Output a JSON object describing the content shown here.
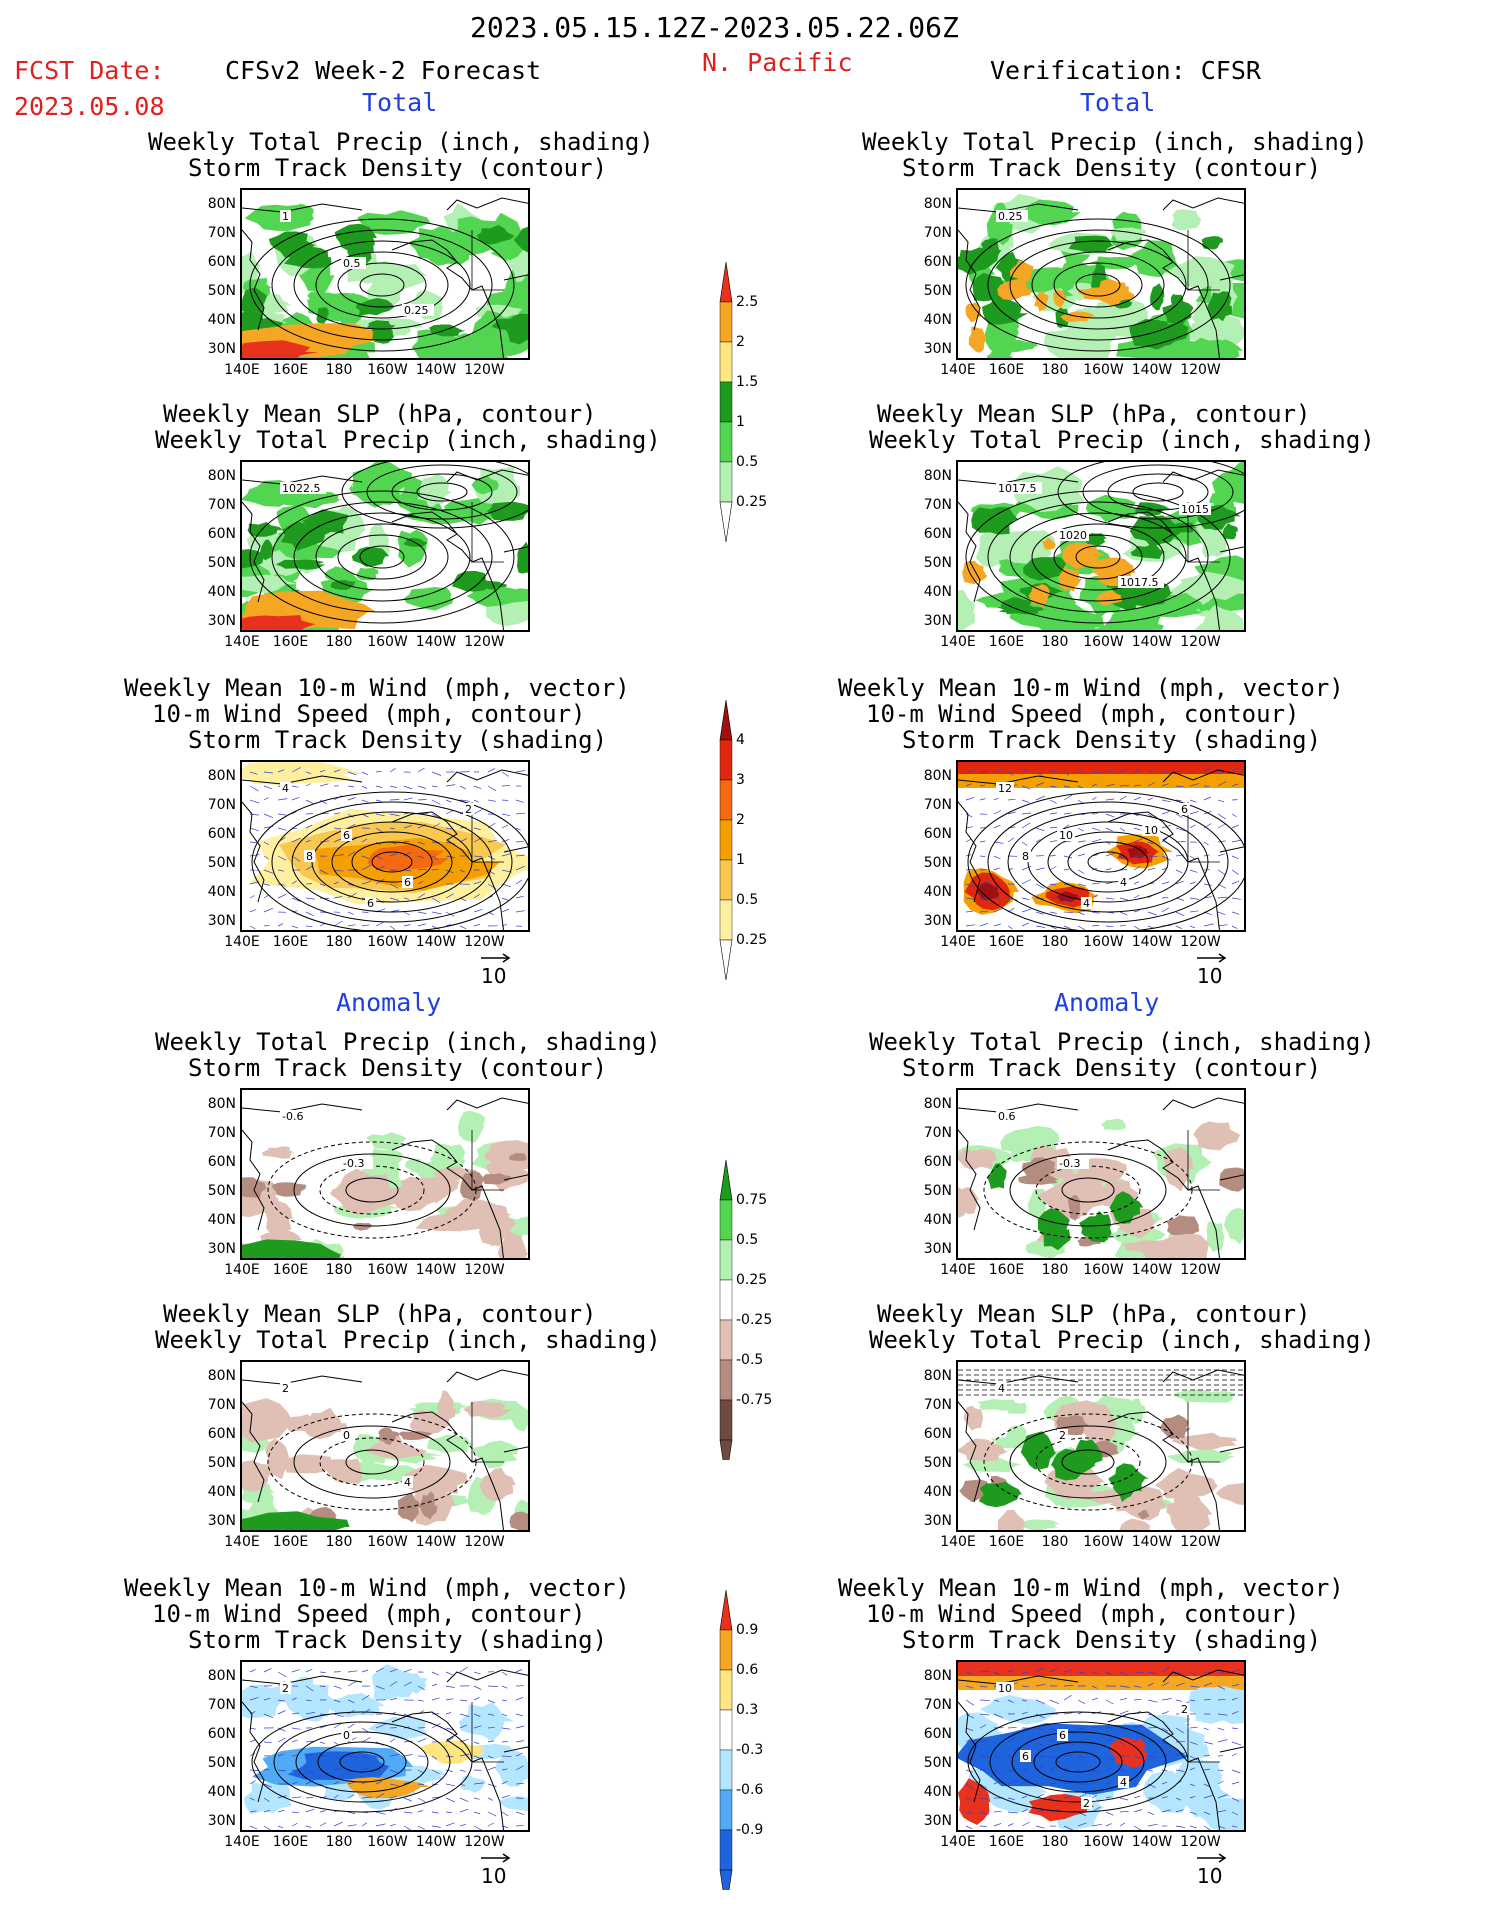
{
  "header": {
    "date_range": "2023.05.15.12Z-2023.05.22.06Z",
    "fcst_label": "FCST Date:",
    "fcst_date": "2023.05.08",
    "forecast_title": "CFSv2 Week-2 Forecast",
    "region": "N. Pacific",
    "verification_title": "Verification: CFSR"
  },
  "sections": {
    "total": "Total",
    "anomaly": "Anomaly"
  },
  "panel_titles": {
    "precip_storm": [
      "Weekly Total Precip (inch, shading)",
      "Storm Track Density (contour)"
    ],
    "slp_precip": [
      "Weekly Mean SLP (hPa, contour)",
      "Weekly Total Precip (inch, shading)"
    ],
    "wind_storm": [
      "Weekly Mean 10-m Wind (mph, vector)",
      "10-m Wind Speed (mph, contour)",
      "Storm Track Density (shading)"
    ]
  },
  "axes": {
    "lat_ticks": [
      "80N",
      "70N",
      "60N",
      "50N",
      "40N",
      "30N"
    ],
    "lon_ticks": [
      "140E",
      "160E",
      "180",
      "160W",
      "140W",
      "120W"
    ]
  },
  "vector_reference": "10",
  "colorbars": {
    "total_precip": {
      "labels": [
        "2.5",
        "2",
        "1.5",
        "1",
        "0.5",
        "0.25"
      ],
      "colors": [
        "#e8321e",
        "#f5a623",
        "#ffe680",
        "#1e9b1e",
        "#52d652",
        "#b4f0b4"
      ]
    },
    "total_storm": {
      "labels": [
        "4",
        "3",
        "2",
        "1",
        "0.5",
        "0.25"
      ],
      "colors": [
        "#a01010",
        "#e02810",
        "#f56a10",
        "#f5a000",
        "#f8c850",
        "#fff0a0"
      ]
    },
    "anom_precip": {
      "labels": [
        "0.75",
        "0.5",
        "0.25",
        "-0.25",
        "-0.5",
        "-0.75"
      ],
      "colors": [
        "#1e9b1e",
        "#52d652",
        "#b4f0b4",
        "#ffffff",
        "#e0c0b4",
        "#b48c80",
        "#6e4a40"
      ]
    },
    "anom_storm": {
      "labels": [
        "0.9",
        "0.6",
        "0.3",
        "-0.3",
        "-0.6",
        "-0.9"
      ],
      "colors": [
        "#e8321e",
        "#f5a623",
        "#ffe680",
        "#ffffff",
        "#b4e6ff",
        "#50aaf5",
        "#1e64dc"
      ]
    }
  },
  "contour_labels": {
    "fc_total_precip": [
      "1",
      "0.5",
      "0.25"
    ],
    "vf_total_precip": [
      "0.25"
    ],
    "fc_total_slp": [
      "1022.5"
    ],
    "vf_total_slp": [
      "1017.5",
      "1020",
      "1017.5",
      "1015"
    ],
    "fc_total_wind": [
      "4",
      "6",
      "6",
      "2",
      "8",
      "6"
    ],
    "vf_total_wind": [
      "12",
      "10",
      "4",
      "6",
      "8",
      "4",
      "10"
    ],
    "fc_anom_precip": [
      "-0.6",
      "-0.3"
    ],
    "vf_anom_precip": [
      "0.6",
      "-0.3"
    ],
    "fc_anom_slp": [
      "2",
      "0",
      "4"
    ],
    "vf_anom_slp": [
      "4",
      "2"
    ],
    "fc_anom_wind": [
      "2",
      "0"
    ],
    "vf_anom_wind": [
      "10",
      "6",
      "4",
      "2",
      "6",
      "2"
    ]
  }
}
